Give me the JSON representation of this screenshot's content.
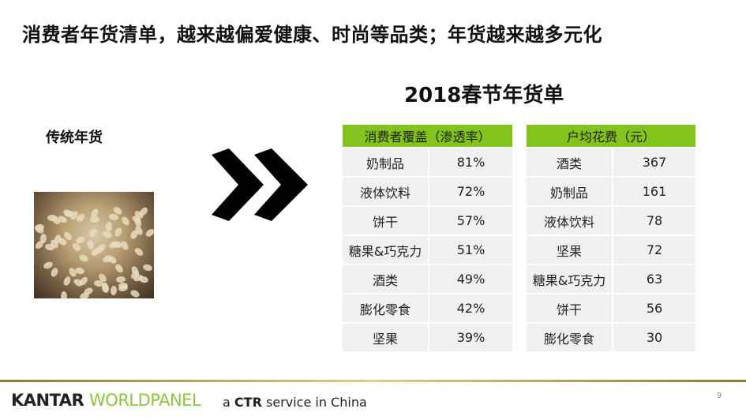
{
  "title": "消费者年货清单，越来越偏爱健康、时尚等品类；年货越来越多元化",
  "subtitle": "2018春节年货单",
  "traditional_label": "传统年货",
  "penetration_table": {
    "header": "消费者覆盖（渗透率）",
    "rows": [
      {
        "item": "奶制品",
        "value": "81%"
      },
      {
        "item": "液体饮料",
        "value": "72%"
      },
      {
        "item": "饼干",
        "value": "57%"
      },
      {
        "item": "糖果&巧克力",
        "value": "51%"
      },
      {
        "item": "酒类",
        "value": "49%"
      },
      {
        "item": "膨化零食",
        "value": "42%"
      },
      {
        "item": "坚果",
        "value": "39%"
      }
    ]
  },
  "spend_table": {
    "header": "户均花费（元）",
    "rows": [
      {
        "item": "酒类",
        "value": "367"
      },
      {
        "item": "奶制品",
        "value": "161"
      },
      {
        "item": "液体饮料",
        "value": "78"
      },
      {
        "item": "坚果",
        "value": "72"
      },
      {
        "item": "糖果&巧克力",
        "value": "63"
      },
      {
        "item": "饼干",
        "value": "56"
      },
      {
        "item": "膨化零食",
        "value": "30"
      }
    ]
  },
  "footer": {
    "logo_a": "KANTAR",
    "logo_b": "WORLDPANEL",
    "tag_a": "a",
    "tag_b": "CTR",
    "tag_c": "service in China",
    "page": "9"
  },
  "colors": {
    "accent": "#82c31c",
    "cell": "#f0f0f0"
  }
}
